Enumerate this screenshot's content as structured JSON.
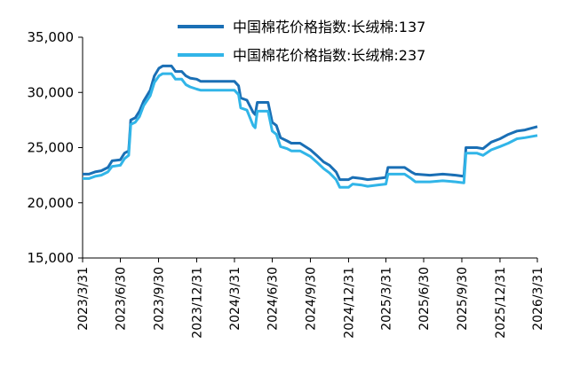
{
  "chart_data": {
    "type": "line",
    "title": "",
    "xlabel": "",
    "ylabel": "",
    "ylim": [
      15000,
      35000
    ],
    "y_ticks": [
      "15,000",
      "20,000",
      "25,000",
      "30,000",
      "35,000"
    ],
    "x_ticks": [
      "2023/3/31",
      "2023/6/30",
      "2023/9/30",
      "2023/12/31",
      "2024/3/31",
      "2024/6/30",
      "2024/9/30",
      "2024/12/31",
      "2025/3/31",
      "2025/6/30",
      "2025/9/30",
      "2025/12/31",
      "2026/3/31"
    ],
    "grid": false,
    "legend_position": "top-right",
    "series": [
      {
        "name": "中国棉花价格指数:长绒棉:137",
        "color": "#1a6fb5",
        "points": [
          [
            "2023-03-31",
            22600
          ],
          [
            "2023-04-15",
            22600
          ],
          [
            "2023-04-30",
            22800
          ],
          [
            "2023-05-15",
            22900
          ],
          [
            "2023-05-31",
            23200
          ],
          [
            "2023-06-10",
            23800
          ],
          [
            "2023-06-30",
            23900
          ],
          [
            "2023-07-10",
            24500
          ],
          [
            "2023-07-20",
            24700
          ],
          [
            "2023-07-25",
            27500
          ],
          [
            "2023-08-05",
            27700
          ],
          [
            "2023-08-15",
            28300
          ],
          [
            "2023-08-25",
            29200
          ],
          [
            "2023-09-10",
            30200
          ],
          [
            "2023-09-20",
            31500
          ],
          [
            "2023-10-01",
            32200
          ],
          [
            "2023-10-10",
            32400
          ],
          [
            "2023-10-31",
            32400
          ],
          [
            "2023-11-10",
            31900
          ],
          [
            "2023-11-25",
            31900
          ],
          [
            "2023-12-05",
            31500
          ],
          [
            "2023-12-15",
            31300
          ],
          [
            "2023-12-31",
            31200
          ],
          [
            "2024-01-10",
            31000
          ],
          [
            "2024-02-15",
            31000
          ],
          [
            "2024-03-31",
            31000
          ],
          [
            "2024-04-10",
            30600
          ],
          [
            "2024-04-15",
            29500
          ],
          [
            "2024-04-30",
            29300
          ],
          [
            "2024-05-15",
            28200
          ],
          [
            "2024-05-20",
            28000
          ],
          [
            "2024-05-25",
            29100
          ],
          [
            "2024-06-20",
            29100
          ],
          [
            "2024-06-30",
            27300
          ],
          [
            "2024-07-10",
            27000
          ],
          [
            "2024-07-20",
            25900
          ],
          [
            "2024-08-05",
            25600
          ],
          [
            "2024-08-15",
            25400
          ],
          [
            "2024-09-05",
            25400
          ],
          [
            "2024-09-30",
            24800
          ],
          [
            "2024-10-15",
            24300
          ],
          [
            "2024-11-01",
            23700
          ],
          [
            "2024-11-15",
            23400
          ],
          [
            "2024-12-01",
            22800
          ],
          [
            "2024-12-10",
            22100
          ],
          [
            "2024-12-31",
            22100
          ],
          [
            "2025-01-10",
            22300
          ],
          [
            "2025-02-01",
            22200
          ],
          [
            "2025-02-15",
            22100
          ],
          [
            "2025-03-10",
            22200
          ],
          [
            "2025-03-31",
            22300
          ],
          [
            "2025-04-05",
            23200
          ],
          [
            "2025-05-15",
            23200
          ],
          [
            "2025-05-31",
            22800
          ],
          [
            "2025-06-10",
            22600
          ],
          [
            "2025-07-15",
            22500
          ],
          [
            "2025-08-15",
            22600
          ],
          [
            "2025-09-15",
            22500
          ],
          [
            "2025-10-05",
            22400
          ],
          [
            "2025-10-10",
            25000
          ],
          [
            "2025-11-05",
            25000
          ],
          [
            "2025-11-20",
            24900
          ],
          [
            "2025-12-10",
            25500
          ],
          [
            "2025-12-31",
            25800
          ],
          [
            "2026-01-20",
            26200
          ],
          [
            "2026-02-10",
            26500
          ],
          [
            "2026-03-01",
            26600
          ],
          [
            "2026-03-31",
            26900
          ]
        ]
      },
      {
        "name": "中国棉花价格指数:长绒棉:237",
        "color": "#31b5e8",
        "points": [
          [
            "2023-03-31",
            22200
          ],
          [
            "2023-04-15",
            22200
          ],
          [
            "2023-04-30",
            22400
          ],
          [
            "2023-05-15",
            22500
          ],
          [
            "2023-05-31",
            22800
          ],
          [
            "2023-06-10",
            23300
          ],
          [
            "2023-06-30",
            23400
          ],
          [
            "2023-07-10",
            24000
          ],
          [
            "2023-07-20",
            24300
          ],
          [
            "2023-07-25",
            27100
          ],
          [
            "2023-08-05",
            27300
          ],
          [
            "2023-08-15",
            27800
          ],
          [
            "2023-08-25",
            28800
          ],
          [
            "2023-09-10",
            29700
          ],
          [
            "2023-09-20",
            30900
          ],
          [
            "2023-10-01",
            31500
          ],
          [
            "2023-10-10",
            31700
          ],
          [
            "2023-10-31",
            31700
          ],
          [
            "2023-11-10",
            31200
          ],
          [
            "2023-11-25",
            31200
          ],
          [
            "2023-12-05",
            30700
          ],
          [
            "2023-12-15",
            30500
          ],
          [
            "2023-12-31",
            30300
          ],
          [
            "2024-01-10",
            30200
          ],
          [
            "2024-02-15",
            30200
          ],
          [
            "2024-03-31",
            30200
          ],
          [
            "2024-04-10",
            29800
          ],
          [
            "2024-04-15",
            28600
          ],
          [
            "2024-04-30",
            28400
          ],
          [
            "2024-05-15",
            27000
          ],
          [
            "2024-05-20",
            26800
          ],
          [
            "2024-05-25",
            28300
          ],
          [
            "2024-06-20",
            28300
          ],
          [
            "2024-06-30",
            26500
          ],
          [
            "2024-07-10",
            26200
          ],
          [
            "2024-07-20",
            25100
          ],
          [
            "2024-08-05",
            24900
          ],
          [
            "2024-08-15",
            24700
          ],
          [
            "2024-09-05",
            24700
          ],
          [
            "2024-09-30",
            24200
          ],
          [
            "2024-10-15",
            23700
          ],
          [
            "2024-11-01",
            23100
          ],
          [
            "2024-11-15",
            22700
          ],
          [
            "2024-12-01",
            22100
          ],
          [
            "2024-12-10",
            21400
          ],
          [
            "2024-12-31",
            21400
          ],
          [
            "2025-01-10",
            21700
          ],
          [
            "2025-02-01",
            21600
          ],
          [
            "2025-02-15",
            21500
          ],
          [
            "2025-03-10",
            21600
          ],
          [
            "2025-03-31",
            21700
          ],
          [
            "2025-04-05",
            22600
          ],
          [
            "2025-05-15",
            22600
          ],
          [
            "2025-05-31",
            22200
          ],
          [
            "2025-06-10",
            21900
          ],
          [
            "2025-07-15",
            21900
          ],
          [
            "2025-08-15",
            22000
          ],
          [
            "2025-09-15",
            21900
          ],
          [
            "2025-10-05",
            21800
          ],
          [
            "2025-10-10",
            24500
          ],
          [
            "2025-11-05",
            24500
          ],
          [
            "2025-11-20",
            24300
          ],
          [
            "2025-12-10",
            24800
          ],
          [
            "2025-12-31",
            25100
          ],
          [
            "2026-01-20",
            25400
          ],
          [
            "2026-02-10",
            25800
          ],
          [
            "2026-03-01",
            25900
          ],
          [
            "2026-03-31",
            26100
          ]
        ]
      }
    ]
  }
}
